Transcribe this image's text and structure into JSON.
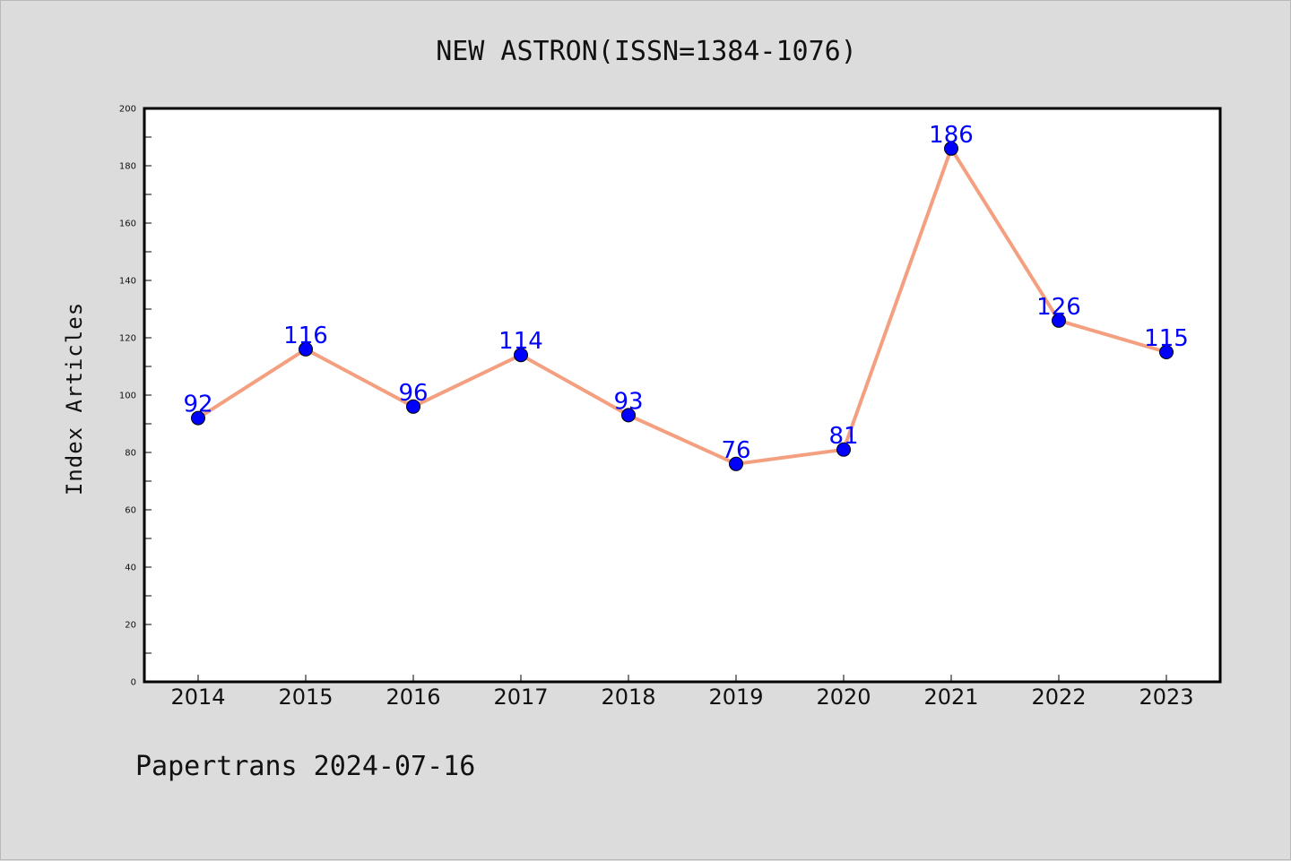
{
  "title": "NEW ASTRON(ISSN=1384-1076)",
  "footer": "Papertrans 2024-07-16",
  "colors": {
    "line": "#f4a080",
    "marker": "#0000ff",
    "label": "#0000ff",
    "background": "#dcdcdc",
    "plot_bg": "#ffffff"
  },
  "chart_data": {
    "type": "line",
    "title": "NEW ASTRON(ISSN=1384-1076)",
    "xlabel": "",
    "ylabel": "Index Articles",
    "categories": [
      "2014",
      "2015",
      "2016",
      "2017",
      "2018",
      "2019",
      "2020",
      "2021",
      "2022",
      "2023"
    ],
    "values": [
      92,
      116,
      96,
      114,
      93,
      76,
      81,
      186,
      126,
      115
    ],
    "ylim": [
      0,
      200
    ],
    "yticks": [
      0,
      20,
      40,
      60,
      80,
      100,
      120,
      140,
      160,
      180,
      200
    ],
    "grid": false,
    "data_labels": true
  }
}
